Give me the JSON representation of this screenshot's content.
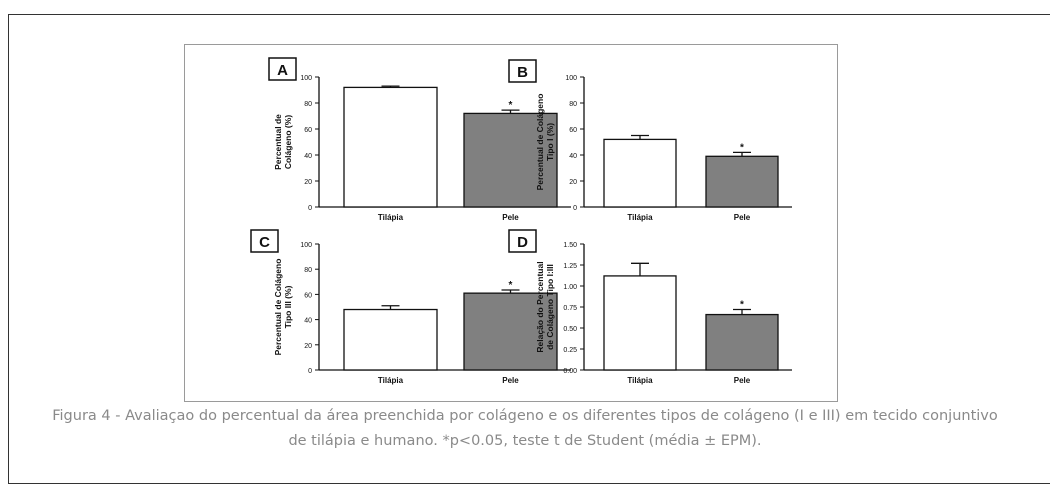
{
  "figure": {
    "caption_line1": "Figura 4 - Avaliaçao do percentual da área preenchida por colágeno e os diferentes tipos de colágeno (I e III) em tecido conjuntivo",
    "caption_line2": "de tilápia e humano. *p<0.05, teste t de Student (média ± EPM).",
    "colors": {
      "bar_tilapia": "#ffffff",
      "bar_pele": "#808080",
      "axis": "#111111",
      "caption": "#8a8a8a"
    }
  },
  "chart_data": [
    {
      "type": "bar",
      "panel": "A",
      "ylabel": [
        "Percentual de",
        "Colágeno (%)"
      ],
      "categories": [
        "Tilápia",
        "Pele"
      ],
      "values": [
        92,
        72
      ],
      "errors": [
        1,
        2.5
      ],
      "significance": [
        "",
        "*"
      ],
      "ylim": [
        0,
        100
      ],
      "yticks": [
        0,
        20,
        40,
        60,
        80,
        100
      ],
      "tick_labels": [
        "0",
        "20",
        "40",
        "60",
        "80",
        "100"
      ]
    },
    {
      "type": "bar",
      "panel": "B",
      "ylabel": [
        "Percentual de Colágeno",
        "Tipo I (%)"
      ],
      "categories": [
        "Tilápia",
        "Pele"
      ],
      "values": [
        52,
        39
      ],
      "errors": [
        3,
        3
      ],
      "significance": [
        "",
        "*"
      ],
      "ylim": [
        0,
        100
      ],
      "yticks": [
        0,
        20,
        40,
        60,
        80,
        100
      ],
      "tick_labels": [
        "0",
        "20",
        "40",
        "60",
        "80",
        "100"
      ]
    },
    {
      "type": "bar",
      "panel": "C",
      "ylabel": [
        "Percentual de Colágeno",
        "Tipo III (%)"
      ],
      "categories": [
        "Tilápia",
        "Pele"
      ],
      "values": [
        48,
        61
      ],
      "errors": [
        3,
        2.5
      ],
      "significance": [
        "",
        "*"
      ],
      "ylim": [
        0,
        100
      ],
      "yticks": [
        0,
        20,
        40,
        60,
        80,
        100
      ],
      "tick_labels": [
        "0",
        "20",
        "40",
        "60",
        "80",
        "100"
      ]
    },
    {
      "type": "bar",
      "panel": "D",
      "ylabel": [
        "Relação do Percentual",
        "de Colágeno Tipo I:III"
      ],
      "categories": [
        "Tilápia",
        "Pele"
      ],
      "values": [
        1.12,
        0.66
      ],
      "errors": [
        0.15,
        0.06
      ],
      "significance": [
        "",
        "*"
      ],
      "ylim": [
        0,
        1.5
      ],
      "yticks": [
        0,
        0.25,
        0.5,
        0.75,
        1.0,
        1.25,
        1.5
      ],
      "tick_labels": [
        "0.00",
        "0.25",
        "0.50",
        "0.75",
        "1.00",
        "1.25",
        "1.50"
      ]
    }
  ]
}
